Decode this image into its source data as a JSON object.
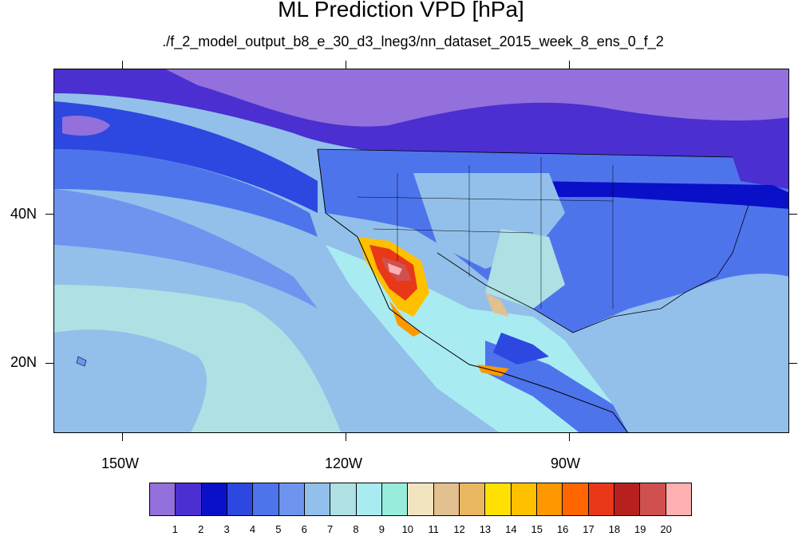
{
  "title": "ML Prediction VPD [hPa]",
  "subtitle": "./f_2_model_output_b8_e_30_d3_lneg3/nn_dataset_2015_week_8_ens_0_f_2",
  "lat_labels": [
    "40N",
    "20N"
  ],
  "lon_labels": [
    "150W",
    "120W",
    "90W"
  ],
  "colorbar": {
    "labels": [
      "1",
      "2",
      "3",
      "4",
      "5",
      "6",
      "7",
      "8",
      "9",
      "10",
      "11",
      "12",
      "13",
      "14",
      "15",
      "16",
      "17",
      "18",
      "19",
      "20"
    ],
    "colors": [
      "#9370db",
      "#4b2fd0",
      "#0a10c8",
      "#2c48e0",
      "#4e74ec",
      "#6f94ef",
      "#92c0ea",
      "#aee0e4",
      "#a8ecf2",
      "#98ecdc",
      "#f3e4c0",
      "#e3c090",
      "#e8b860",
      "#ffe000",
      "#ffc000",
      "#ff9800",
      "#ff6600",
      "#e83818",
      "#b82020",
      "#d05050",
      "#ffb0b0"
    ]
  }
}
